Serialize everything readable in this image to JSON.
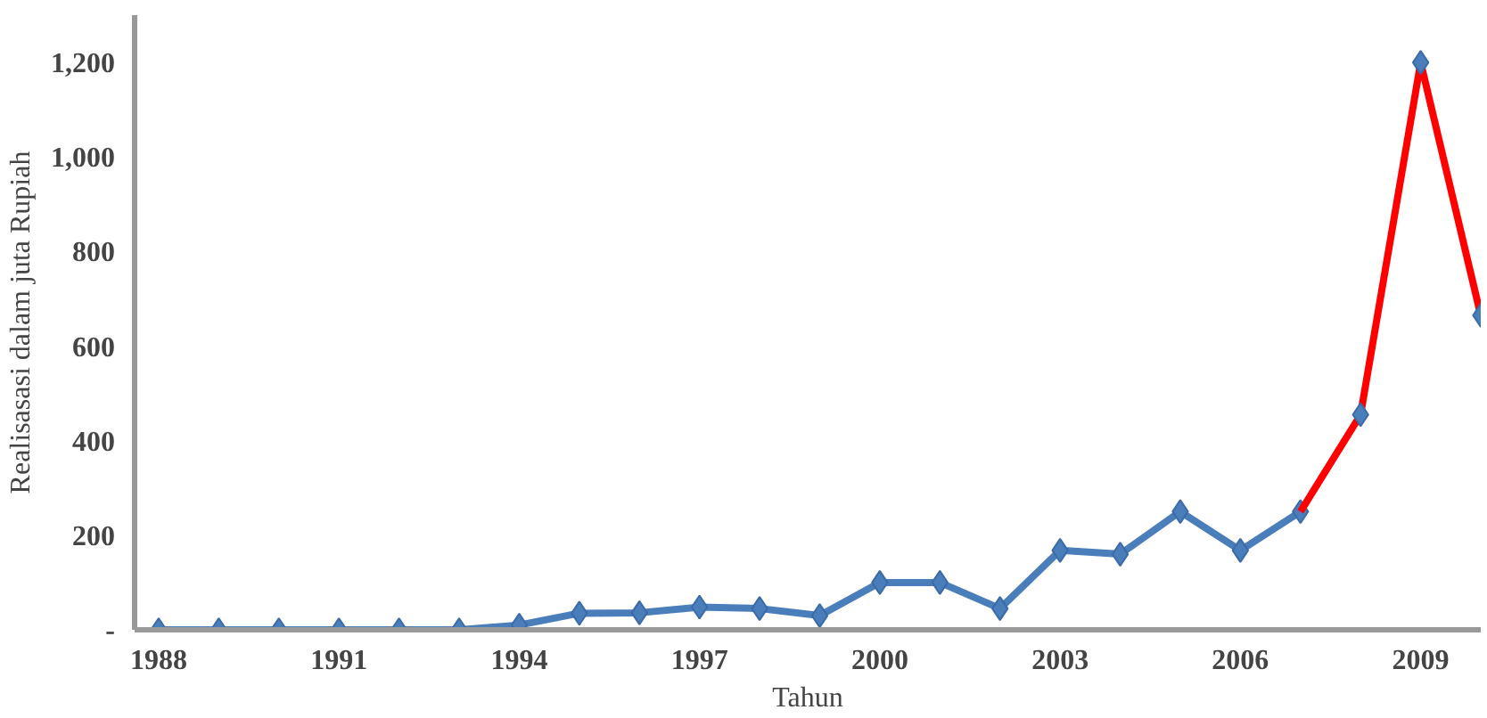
{
  "chart_data": {
    "type": "line",
    "xlabel": "Tahun",
    "ylabel": "Realisasasi dalam juta Rupiah",
    "series": [
      {
        "color": "#4a7ebb",
        "marker": "diamond",
        "x": [
          1988,
          1989,
          1990,
          1991,
          1992,
          1993,
          1994,
          1995,
          1996,
          1997,
          1998,
          1999,
          2000,
          2001,
          2002,
          2003,
          2004,
          2005,
          2006,
          2007
        ],
        "values": [
          0,
          0,
          0,
          0,
          0,
          0,
          10,
          35,
          36,
          48,
          45,
          30,
          100,
          100,
          45,
          168,
          160,
          250,
          168,
          250
        ]
      },
      {
        "color": "#ff0000",
        "marker": "none",
        "x": [
          2007,
          2008,
          2009,
          2010
        ],
        "values": [
          250,
          455,
          1200,
          665
        ]
      },
      {
        "type": "scatter",
        "color": "#4a7ebb",
        "marker": "diamond",
        "x": [
          2008,
          2009,
          2010
        ],
        "values": [
          455,
          1200,
          665
        ]
      }
    ],
    "xlim": [
      1987.6,
      2010
    ],
    "xticks": [
      1988,
      1991,
      1994,
      1997,
      2000,
      2003,
      2006,
      2009
    ],
    "ylim": [
      0,
      1300
    ],
    "yticks": [
      {
        "value": 0,
        "label": "-"
      },
      {
        "value": 200,
        "label": "200"
      },
      {
        "value": 400,
        "label": "400"
      },
      {
        "value": 600,
        "label": "600"
      },
      {
        "value": 800,
        "label": "800"
      },
      {
        "value": 1000,
        "label": "1,000"
      },
      {
        "value": 1200,
        "label": "1,200"
      }
    ],
    "grid": false
  }
}
